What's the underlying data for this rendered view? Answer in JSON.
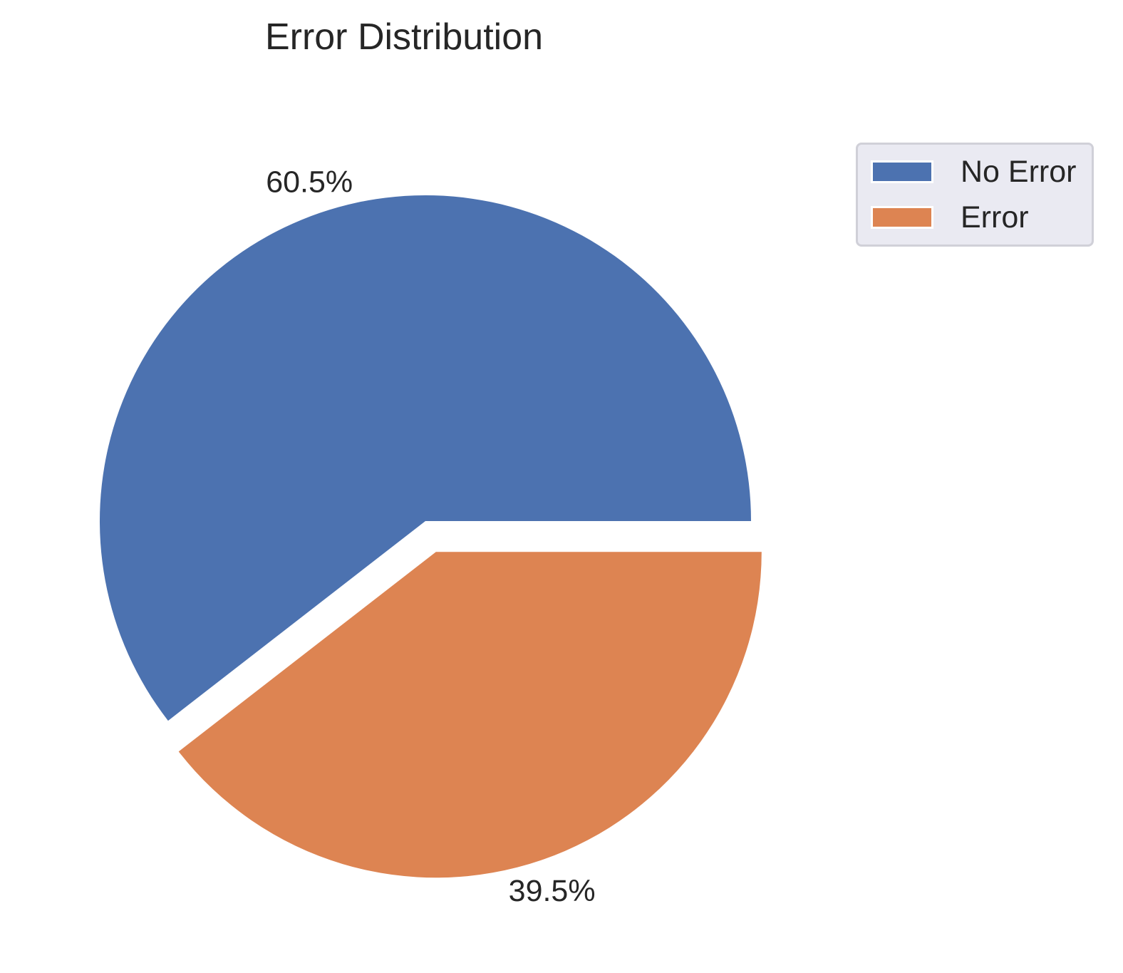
{
  "chart_data": {
    "type": "pie",
    "title": "Error Distribution",
    "categories": [
      "No Error",
      "Error"
    ],
    "values": [
      60.5,
      39.5
    ],
    "value_labels": [
      "60.5%",
      "39.5%"
    ],
    "colors": [
      "#4c72b0",
      "#dd8452"
    ],
    "explode": [
      0,
      0.1
    ],
    "legend_placement": "upper-right outside"
  }
}
